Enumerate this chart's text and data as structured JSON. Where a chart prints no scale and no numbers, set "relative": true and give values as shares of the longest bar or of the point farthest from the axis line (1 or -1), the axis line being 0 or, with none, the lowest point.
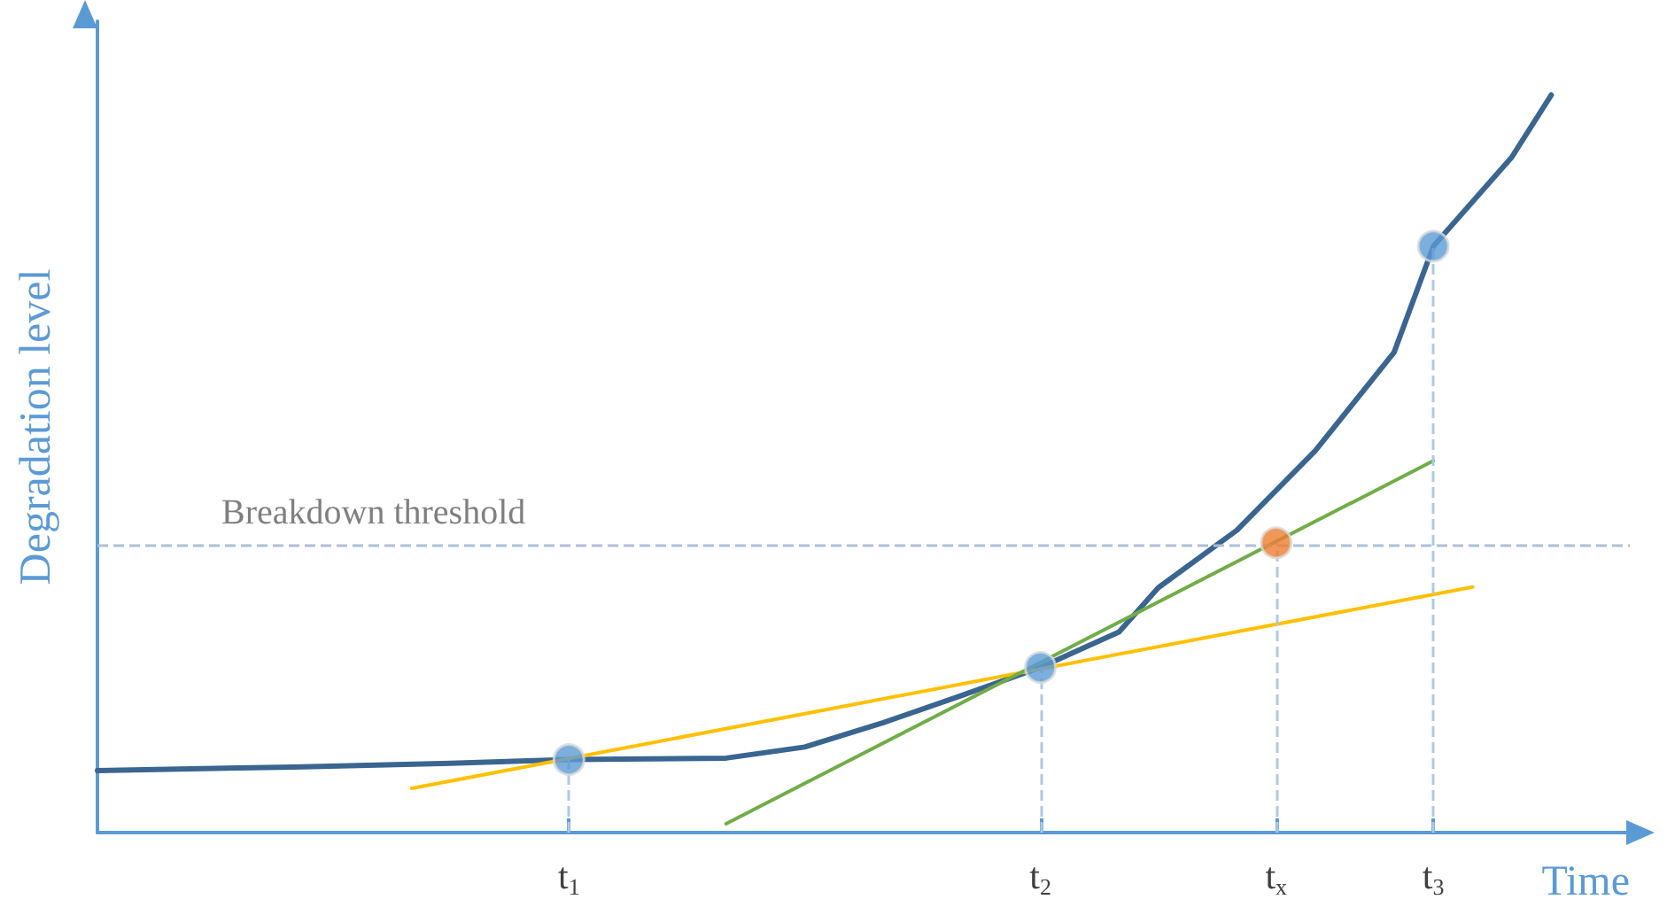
{
  "chart_data": {
    "type": "line",
    "relative": true,
    "xlabel": "Time",
    "ylabel": "Degradation level",
    "categories": [
      null,
      null,
      null,
      null,
      null,
      null,
      null,
      null,
      null,
      null,
      null,
      null,
      "t$_{1}$",
      null,
      null,
      null,
      null,
      null,
      null,
      null,
      null,
      null,
      null,
      null,
      "t$_{2}$",
      null,
      null,
      null,
      null,
      null,
      "t$_{x}$",
      null,
      null,
      null,
      "t$_{3}$",
      null,
      null,
      null,
      null,
      null
    ],
    "tick_labels": "x",
    "grid": false,
    "marker": "none",
    "line_style": "solid",
    "series": [
      {
        "color": "#3a6591",
        "values": [
          0.084,
          null,
          null,
          null,
          null,
          0.089,
          null,
          null,
          null,
          0.094,
          null,
          null,
          0.099,
          null,
          null,
          null,
          0.101,
          null,
          0.116,
          null,
          0.149,
          null,
          0.186,
          null,
          0.224,
          null,
          0.272,
          0.332,
          null,
          0.41,
          null,
          0.518,
          null,
          0.651,
          0.795,
          null,
          0.916,
          1.0,
          null,
          null
        ]
      },
      {
        "color": "#ffc000",
        "values": [
          null,
          null,
          null,
          null,
          null,
          null,
          null,
          null,
          0.06,
          null,
          null,
          null,
          null,
          null,
          null,
          null,
          null,
          null,
          null,
          null,
          null,
          null,
          null,
          null,
          null,
          null,
          null,
          null,
          null,
          null,
          null,
          null,
          null,
          null,
          null,
          0.333,
          null,
          null,
          null,
          null
        ]
      },
      {
        "color": "#70ad47",
        "values": [
          null,
          null,
          null,
          null,
          null,
          null,
          null,
          null,
          null,
          null,
          null,
          null,
          null,
          null,
          null,
          null,
          0.012,
          null,
          null,
          null,
          null,
          null,
          null,
          null,
          null,
          null,
          null,
          null,
          null,
          null,
          null,
          null,
          null,
          null,
          0.504,
          null,
          null,
          null,
          null,
          null
        ]
      },
      {
        "type": "scatter",
        "marker": "circle",
        "color": "#5b9bd5",
        "values": [
          null,
          null,
          null,
          null,
          null,
          null,
          null,
          null,
          null,
          null,
          null,
          null,
          0.099,
          null,
          null,
          null,
          null,
          null,
          null,
          null,
          null,
          null,
          null,
          null,
          0.224,
          null,
          null,
          null,
          null,
          null,
          null,
          null,
          null,
          null,
          0.795,
          null,
          null,
          null,
          null,
          null
        ]
      },
      {
        "type": "scatter",
        "marker": "circle",
        "color": "#ed7d31",
        "values": [
          null,
          null,
          null,
          null,
          null,
          null,
          null,
          null,
          null,
          null,
          null,
          null,
          null,
          null,
          null,
          null,
          null,
          null,
          null,
          null,
          null,
          null,
          null,
          null,
          null,
          null,
          null,
          null,
          null,
          null,
          0.393,
          null,
          null,
          null,
          null,
          null,
          null,
          null,
          null,
          null
        ]
      }
    ],
    "ref_lines": [
      {
        "axis": "y",
        "value": 0.393,
        "label": "Breakdown threshold",
        "color": "#aebfd8",
        "line_style": "dashed"
      }
    ]
  }
}
